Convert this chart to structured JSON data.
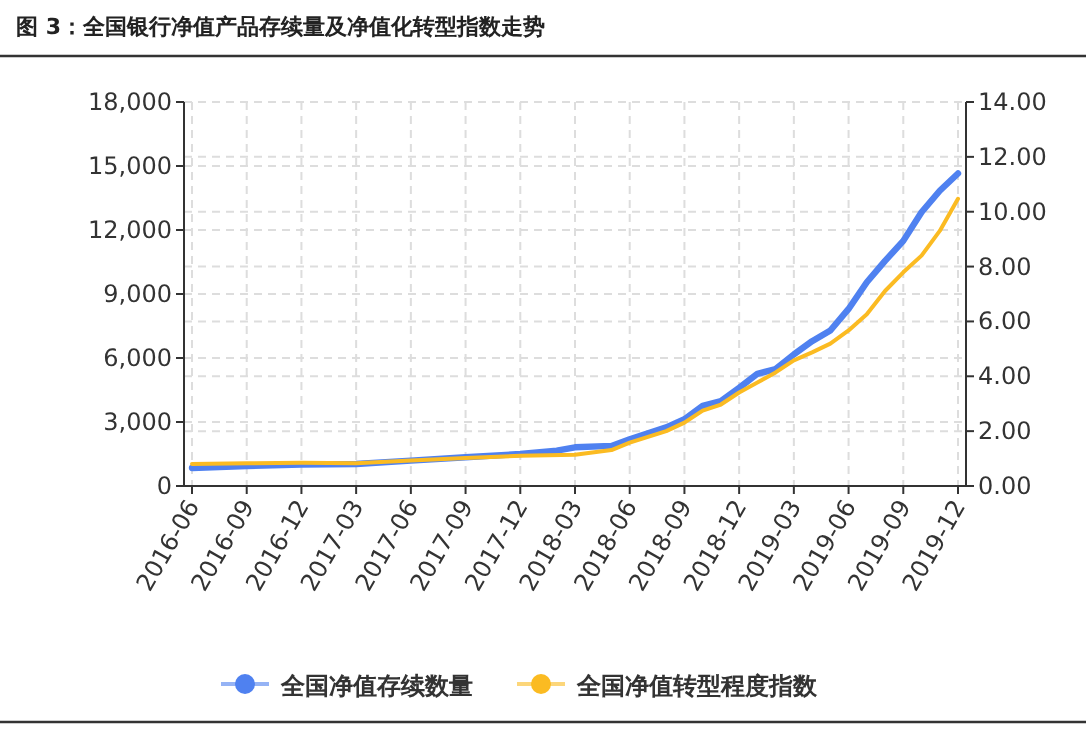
{
  "chart_data": {
    "type": "line",
    "title": "图 3：全国银行净值产品存续量及净值化转型指数走势",
    "series": [
      {
        "name": "全国净值存续数量",
        "color": "#4f81f0",
        "x": [
          "2016-06",
          "2016-09",
          "2016-12",
          "2017-03",
          "2017-06",
          "2017-09",
          "2017-12",
          "2018-02",
          "2018-03",
          "2018-05",
          "2018-06",
          "2018-08",
          "2018-09",
          "2018-10",
          "2018-11",
          "2018-12",
          "2019-01",
          "2019-02",
          "2019-03",
          "2019-04",
          "2019-05",
          "2019-06",
          "2019-07",
          "2019-08",
          "2019-09",
          "2019-10",
          "2019-11",
          "2019-12"
        ],
        "values": [
          845,
          939,
          1000,
          1030,
          1190,
          1346,
          1500,
          1660,
          1815,
          1880,
          2190,
          2750,
          3130,
          3760,
          3980,
          4600,
          5260,
          5480,
          6170,
          6790,
          7290,
          8300,
          9550,
          10550,
          11490,
          12830,
          13840,
          14650
        ]
      },
      {
        "name": "全国净值转型程度指数",
        "color": "#fbbb22",
        "axis": "y2",
        "x": [
          "2016-06",
          "2016-09",
          "2016-12",
          "2017-03",
          "2017-06",
          "2017-09",
          "2017-12",
          "2018-03",
          "2018-05",
          "2018-06",
          "2018-08",
          "2018-09",
          "2018-10",
          "2018-11",
          "2018-12",
          "2019-01",
          "2019-02",
          "2019-03",
          "2019-04",
          "2019-05",
          "2019-06",
          "2019-07",
          "2019-08",
          "2019-09",
          "2019-10",
          "2019-11",
          "2019-12"
        ],
        "values": [
          0.8,
          0.83,
          0.85,
          0.83,
          0.93,
          1.02,
          1.1,
          1.14,
          1.31,
          1.58,
          2.0,
          2.31,
          2.75,
          2.97,
          3.41,
          3.77,
          4.14,
          4.58,
          4.87,
          5.19,
          5.67,
          6.26,
          7.11,
          7.79,
          8.4,
          9.3,
          10.47
        ]
      }
    ],
    "xlim": [
      "2016-06",
      "2019-12"
    ],
    "xticks": [
      "2016-06",
      "2016-09",
      "2016-12",
      "2017-03",
      "2017-06",
      "2017-09",
      "2017-12",
      "2018-03",
      "2018-06",
      "2018-09",
      "2018-12",
      "2019-03",
      "2019-06",
      "2019-09",
      "2019-12"
    ],
    "ylim": [
      0,
      18000
    ],
    "yticks": [
      {
        "value": 0,
        "label": "0"
      },
      {
        "value": 3000,
        "label": "3,000"
      },
      {
        "value": 6000,
        "label": "6,000"
      },
      {
        "value": 9000,
        "label": "9,000"
      },
      {
        "value": 12000,
        "label": "12,000"
      },
      {
        "value": 15000,
        "label": "15,000"
      },
      {
        "value": 18000,
        "label": "18,000"
      }
    ],
    "y2lim": [
      0,
      14
    ],
    "y2ticks": [
      {
        "value": 0,
        "label": "0.00"
      },
      {
        "value": 2,
        "label": "2.00"
      },
      {
        "value": 4,
        "label": "4.00"
      },
      {
        "value": 6,
        "label": "6.00"
      },
      {
        "value": 8,
        "label": "8.00"
      },
      {
        "value": 10,
        "label": "10.00"
      },
      {
        "value": 12,
        "label": "12.00"
      },
      {
        "value": 14,
        "label": "14.00"
      }
    ],
    "grid": true,
    "legend": "bottom",
    "marker": "none",
    "line_style": "solid"
  }
}
